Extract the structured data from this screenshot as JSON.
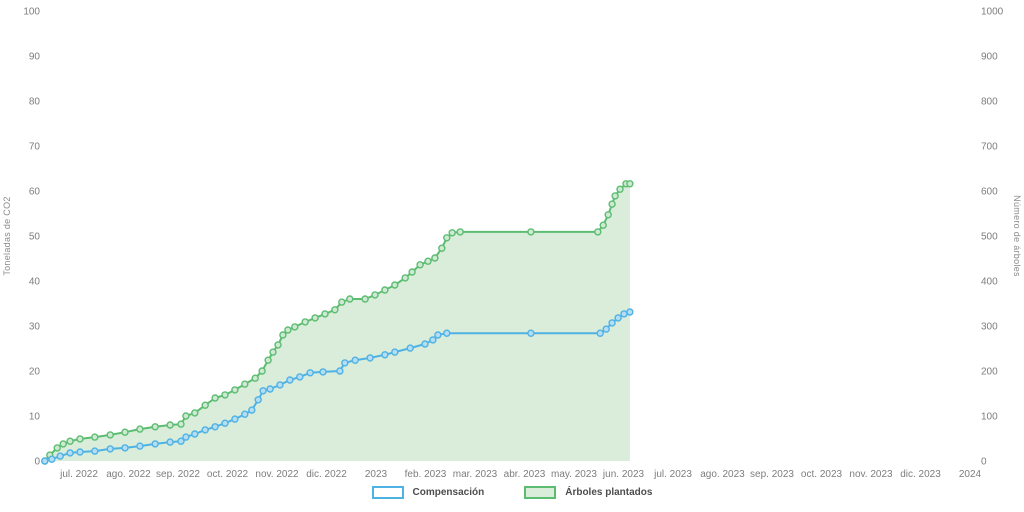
{
  "chart_data": {
    "type": "area",
    "title": "",
    "x_axis": {
      "unit": "months since jul. 2022 tick (0 = jul. 2022, 18 = 2024)",
      "labels": [
        "jul. 2022",
        "ago. 2022",
        "sep. 2022",
        "oct. 2022",
        "nov. 2022",
        "dic. 2022",
        "2023",
        "feb. 2023",
        "mar. 2023",
        "abr. 2023",
        "may. 2023",
        "jun. 2023",
        "jul. 2023",
        "ago. 2023",
        "sep. 2023",
        "oct. 2023",
        "nov. 2023",
        "dic. 2023",
        "2024"
      ]
    },
    "y_left": {
      "label": "Toneladas de CO2",
      "min": 0,
      "max": 100,
      "tick_step": 10
    },
    "y_right": {
      "label": "Número de árboles",
      "min": 0,
      "max": 1000,
      "tick_step": 100
    },
    "grid": false,
    "legend_position": "bottom-center",
    "series": [
      {
        "name": "Compensación",
        "axis": "left",
        "color": "#4fb2e4",
        "marker_fill": "#b5def4",
        "fill": "none",
        "points": [
          [
            -0.69,
            0
          ],
          [
            -0.55,
            0.4
          ],
          [
            -0.38,
            1.1
          ],
          [
            -0.18,
            1.8
          ],
          [
            0.02,
            2
          ],
          [
            0.32,
            2.2
          ],
          [
            0.63,
            2.7
          ],
          [
            0.93,
            2.9
          ],
          [
            1.23,
            3.3
          ],
          [
            1.54,
            3.8
          ],
          [
            1.84,
            4.2
          ],
          [
            2.06,
            4.4
          ],
          [
            2.16,
            5.3
          ],
          [
            2.34,
            6
          ],
          [
            2.55,
            6.9
          ],
          [
            2.75,
            7.6
          ],
          [
            2.95,
            8.4
          ],
          [
            3.15,
            9.3
          ],
          [
            3.35,
            10.4
          ],
          [
            3.49,
            11.3
          ],
          [
            3.62,
            13.6
          ],
          [
            3.72,
            15.6
          ],
          [
            3.86,
            16
          ],
          [
            4.06,
            16.9
          ],
          [
            4.26,
            18
          ],
          [
            4.46,
            18.7
          ],
          [
            4.67,
            19.6
          ],
          [
            4.93,
            19.8
          ],
          [
            5.27,
            20
          ],
          [
            5.37,
            21.8
          ],
          [
            5.58,
            22.4
          ],
          [
            5.88,
            22.9
          ],
          [
            6.18,
            23.6
          ],
          [
            6.38,
            24.2
          ],
          [
            6.69,
            25.1
          ],
          [
            6.99,
            26
          ],
          [
            7.15,
            26.9
          ],
          [
            7.25,
            28
          ],
          [
            7.43,
            28.4
          ],
          [
            9.13,
            28.4
          ],
          [
            10.53,
            28.4
          ],
          [
            10.65,
            29.3
          ],
          [
            10.77,
            30.7
          ],
          [
            10.89,
            31.8
          ],
          [
            11.01,
            32.7
          ],
          [
            11.13,
            33.1
          ]
        ]
      },
      {
        "name": "Árboles plantados",
        "axis": "right",
        "color": "#5cbd71",
        "marker_fill": "#cfe9d4",
        "fill": "#d9edda",
        "points": [
          [
            -0.69,
            0
          ],
          [
            -0.59,
            13
          ],
          [
            -0.44,
            29
          ],
          [
            -0.32,
            38
          ],
          [
            -0.18,
            44
          ],
          [
            0.02,
            49
          ],
          [
            0.32,
            53
          ],
          [
            0.63,
            58
          ],
          [
            0.93,
            64
          ],
          [
            1.23,
            71
          ],
          [
            1.54,
            76
          ],
          [
            1.84,
            80
          ],
          [
            2.06,
            82
          ],
          [
            2.16,
            100
          ],
          [
            2.34,
            107
          ],
          [
            2.55,
            124
          ],
          [
            2.75,
            140
          ],
          [
            2.95,
            147
          ],
          [
            3.15,
            158
          ],
          [
            3.35,
            171
          ],
          [
            3.56,
            184
          ],
          [
            3.7,
            200
          ],
          [
            3.82,
            224
          ],
          [
            3.92,
            242
          ],
          [
            4.02,
            258
          ],
          [
            4.12,
            280
          ],
          [
            4.22,
            291
          ],
          [
            4.36,
            298
          ],
          [
            4.57,
            309
          ],
          [
            4.77,
            318
          ],
          [
            4.97,
            327
          ],
          [
            5.17,
            336
          ],
          [
            5.31,
            353
          ],
          [
            5.47,
            360
          ],
          [
            5.78,
            360
          ],
          [
            5.98,
            369
          ],
          [
            6.18,
            380
          ],
          [
            6.38,
            391
          ],
          [
            6.59,
            407
          ],
          [
            6.73,
            420
          ],
          [
            6.89,
            436
          ],
          [
            7.05,
            444
          ],
          [
            7.19,
            451
          ],
          [
            7.33,
            473
          ],
          [
            7.43,
            496
          ],
          [
            7.54,
            507
          ],
          [
            7.7,
            509
          ],
          [
            9.13,
            509
          ],
          [
            10.48,
            509
          ],
          [
            10.59,
            524
          ],
          [
            10.69,
            547
          ],
          [
            10.77,
            571
          ],
          [
            10.83,
            589
          ],
          [
            10.93,
            604
          ],
          [
            11.05,
            616
          ],
          [
            11.13,
            616
          ]
        ]
      }
    ]
  }
}
